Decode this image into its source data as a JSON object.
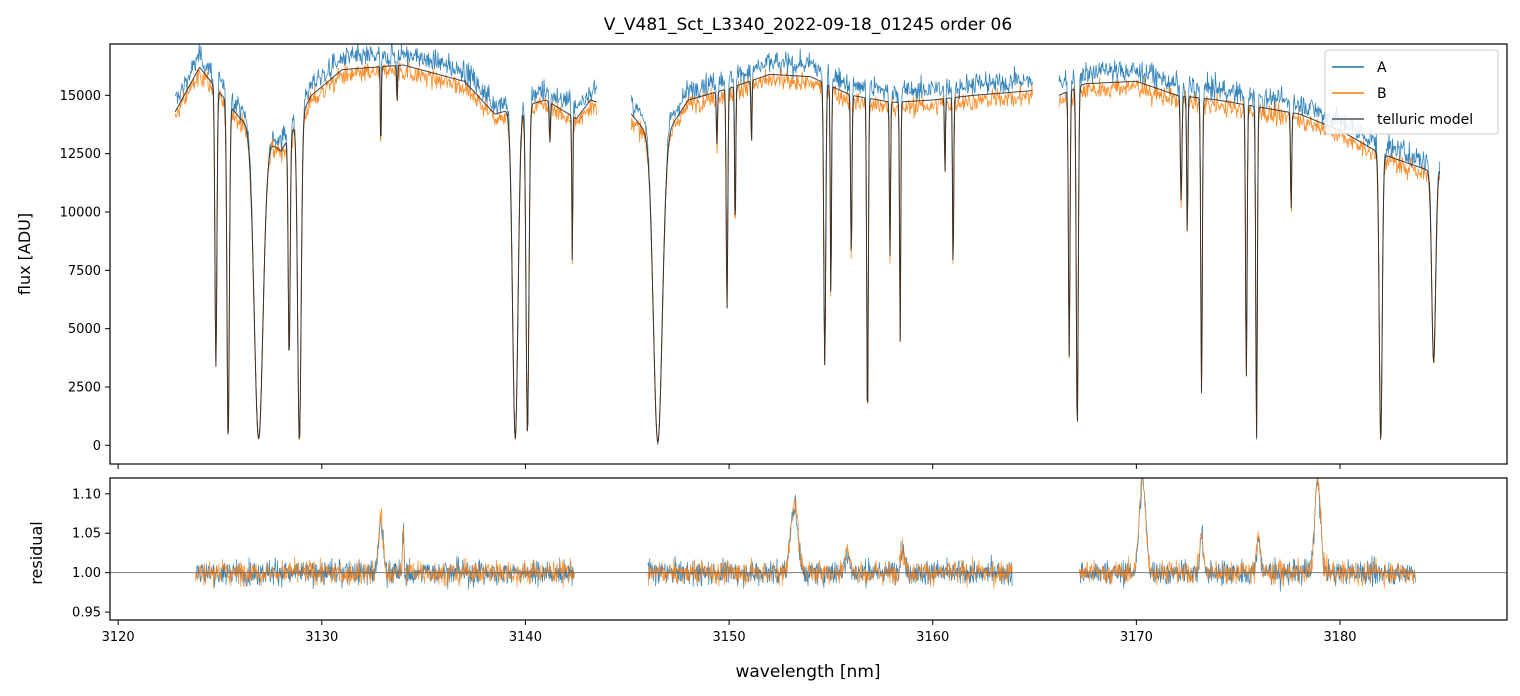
{
  "chart_data": [
    {
      "type": "line",
      "panel": "spectrum",
      "title": "V_V481_Sct_L3340_2022-09-18_01245  order 06",
      "xlabel": "",
      "ylabel": "flux [ADU]",
      "xlim": [
        3119.6,
        3188.2
      ],
      "ylim": [
        -800,
        17200
      ],
      "yticks": [
        0,
        2500,
        5000,
        7500,
        10000,
        12500,
        15000
      ],
      "ytick_labels": [
        "0",
        "2500",
        "5000",
        "7500",
        "10000",
        "12500",
        "15000"
      ],
      "legend_position": "top-right",
      "series": [
        {
          "name": "A",
          "color": "#1f77b4"
        },
        {
          "name": "B",
          "color": "#ff7f0e"
        },
        {
          "name": "telluric model",
          "color": "#555555"
        }
      ],
      "segments": [
        {
          "x_range": [
            3122.8,
            3143.5
          ]
        },
        {
          "x_range": [
            3145.2,
            3164.9
          ]
        },
        {
          "x_range": [
            3166.2,
            3184.9
          ]
        }
      ],
      "continuum": [
        [
          3122.8,
          14300
        ],
        [
          3124,
          16200
        ],
        [
          3126,
          14000
        ],
        [
          3128,
          12600
        ],
        [
          3129.5,
          15000
        ],
        [
          3131,
          16100
        ],
        [
          3134,
          16300
        ],
        [
          3137,
          15600
        ],
        [
          3138.5,
          14200
        ],
        [
          3141,
          14800
        ],
        [
          3142.5,
          14000
        ],
        [
          3143.2,
          14800
        ],
        [
          3145.2,
          14200
        ],
        [
          3146.5,
          12800
        ],
        [
          3148,
          14800
        ],
        [
          3150,
          15300
        ],
        [
          3152,
          15900
        ],
        [
          3154,
          15800
        ],
        [
          3156,
          15000
        ],
        [
          3158,
          14700
        ],
        [
          3160,
          14800
        ],
        [
          3162,
          15000
        ],
        [
          3164.9,
          15200
        ],
        [
          3166.2,
          15000
        ],
        [
          3167.5,
          15500
        ],
        [
          3170,
          15600
        ],
        [
          3172,
          15000
        ],
        [
          3174,
          14800
        ],
        [
          3176,
          14500
        ],
        [
          3178,
          14200
        ],
        [
          3180,
          13500
        ],
        [
          3182,
          12500
        ],
        [
          3184.3,
          11800
        ]
      ],
      "absorption_lines": [
        [
          3124.8,
          0.78,
          0.1
        ],
        [
          3125.4,
          0.99,
          0.12
        ],
        [
          3126.9,
          0.98,
          0.45
        ],
        [
          3128.4,
          0.72,
          0.1
        ],
        [
          3128.9,
          0.99,
          0.18
        ],
        [
          3132.9,
          0.22,
          0.05
        ],
        [
          3133.7,
          0.1,
          0.05
        ],
        [
          3139.5,
          0.98,
          0.28
        ],
        [
          3140.1,
          0.97,
          0.15
        ],
        [
          3141.2,
          0.12,
          0.06
        ],
        [
          3142.3,
          0.45,
          0.05
        ],
        [
          3146.5,
          0.99,
          0.45
        ],
        [
          3149.4,
          0.15,
          0.06
        ],
        [
          3149.9,
          0.62,
          0.08
        ],
        [
          3150.3,
          0.4,
          0.06
        ],
        [
          3151.1,
          0.18,
          0.05
        ],
        [
          3154.7,
          0.78,
          0.1
        ],
        [
          3155.0,
          0.6,
          0.06
        ],
        [
          3156.0,
          0.46,
          0.07
        ],
        [
          3156.8,
          0.94,
          0.08
        ],
        [
          3157.9,
          0.45,
          0.06
        ],
        [
          3158.4,
          0.7,
          0.06
        ],
        [
          3160.6,
          0.22,
          0.05
        ],
        [
          3161.0,
          0.5,
          0.06
        ],
        [
          3166.7,
          0.75,
          0.08
        ],
        [
          3167.1,
          0.96,
          0.1
        ],
        [
          3172.2,
          0.3,
          0.08
        ],
        [
          3172.5,
          0.4,
          0.06
        ],
        [
          3173.2,
          0.85,
          0.08
        ],
        [
          3175.4,
          0.8,
          0.08
        ],
        [
          3175.9,
          0.98,
          0.08
        ],
        [
          3177.6,
          0.3,
          0.06
        ],
        [
          3182.0,
          0.99,
          0.15
        ],
        [
          3184.6,
          0.7,
          0.2
        ]
      ]
    },
    {
      "type": "line",
      "panel": "residual",
      "title": "",
      "xlabel": "wavelength [nm]",
      "ylabel": "residual",
      "xlim": [
        3119.6,
        3188.2
      ],
      "ylim": [
        0.94,
        1.12
      ],
      "xticks": [
        3120,
        3130,
        3140,
        3150,
        3160,
        3170,
        3180
      ],
      "xtick_labels": [
        "3120",
        "3130",
        "3140",
        "3150",
        "3160",
        "3170",
        "3180"
      ],
      "yticks": [
        0.95,
        1.0,
        1.05,
        1.1
      ],
      "ytick_labels": [
        "0.95",
        "1.00",
        "1.05",
        "1.10"
      ],
      "reference_line": 1.0,
      "series": [
        {
          "name": "A",
          "color": "#1f77b4"
        },
        {
          "name": "B",
          "color": "#ff7f0e"
        }
      ],
      "segments": [
        {
          "x_range": [
            3123.8,
            3142.4
          ]
        },
        {
          "x_range": [
            3146.0,
            3163.9
          ]
        },
        {
          "x_range": [
            3167.2,
            3183.7
          ]
        }
      ],
      "features": [
        [
          3132.9,
          0.07,
          0.15
        ],
        [
          3134.0,
          0.06,
          0.05
        ],
        [
          3153.2,
          0.09,
          0.25
        ],
        [
          3155.8,
          0.03,
          0.15
        ],
        [
          3158.5,
          0.03,
          0.15
        ],
        [
          3170.3,
          0.12,
          0.22
        ],
        [
          3173.2,
          0.05,
          0.12
        ],
        [
          3176.0,
          0.05,
          0.12
        ],
        [
          3178.9,
          0.12,
          0.2
        ]
      ],
      "noise_amplitude": 0.015
    }
  ],
  "legend": {
    "entries": [
      {
        "label": "A",
        "color": "#1f77b4"
      },
      {
        "label": "B",
        "color": "#ff7f0e"
      },
      {
        "label": "telluric model",
        "color": "#555555"
      }
    ]
  }
}
